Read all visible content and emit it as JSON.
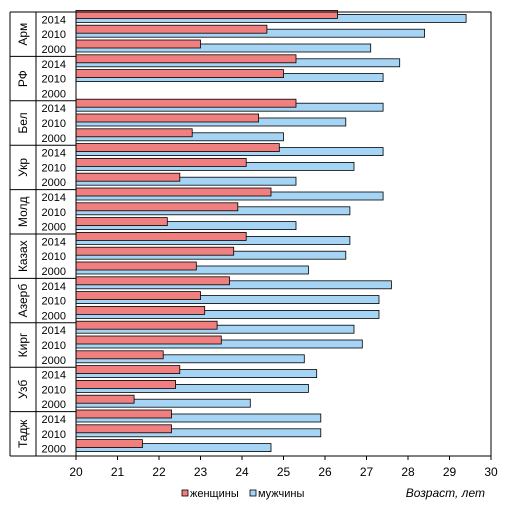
{
  "chart_data": {
    "type": "bar",
    "orientation": "horizontal",
    "xlabel": "Возраст, лет",
    "xlim": [
      20,
      30
    ],
    "xticks": [
      20,
      21,
      22,
      23,
      24,
      25,
      26,
      27,
      28,
      29,
      30
    ],
    "grid": false,
    "legend": "bottom",
    "series": [
      {
        "name": "женщины",
        "color": "#f08080"
      },
      {
        "name": "мужчины",
        "color": "#a6d4f5"
      }
    ],
    "groups": [
      {
        "country": "Арм",
        "rows": [
          {
            "year": "2014",
            "women": 26.3,
            "men": 29.4
          },
          {
            "year": "2010",
            "women": 24.6,
            "men": 28.4
          },
          {
            "year": "2000",
            "women": 23.0,
            "men": 27.1
          }
        ]
      },
      {
        "country": "РФ",
        "rows": [
          {
            "year": "2014",
            "women": 25.3,
            "men": 27.8
          },
          {
            "year": "2010",
            "women": 25.0,
            "men": 27.4
          },
          {
            "year": "2000",
            "women": null,
            "men": null
          }
        ]
      },
      {
        "country": "Бел",
        "rows": [
          {
            "year": "2014",
            "women": 25.3,
            "men": 27.4
          },
          {
            "year": "2010",
            "women": 24.4,
            "men": 26.5
          },
          {
            "year": "2000",
            "women": 22.8,
            "men": 25.0
          }
        ]
      },
      {
        "country": "Укр",
        "rows": [
          {
            "year": "2014",
            "women": 24.9,
            "men": 27.4
          },
          {
            "year": "2010",
            "women": 24.1,
            "men": 26.7
          },
          {
            "year": "2000",
            "women": 22.5,
            "men": 25.3
          }
        ]
      },
      {
        "country": "Молд",
        "rows": [
          {
            "year": "2014",
            "women": 24.7,
            "men": 27.4
          },
          {
            "year": "2010",
            "women": 23.9,
            "men": 26.6
          },
          {
            "year": "2000",
            "women": 22.2,
            "men": 25.3
          }
        ]
      },
      {
        "country": "Казах",
        "rows": [
          {
            "year": "2014",
            "women": 24.1,
            "men": 26.6
          },
          {
            "year": "2010",
            "women": 23.8,
            "men": 26.5
          },
          {
            "year": "2000",
            "women": 22.9,
            "men": 25.6
          }
        ]
      },
      {
        "country": "Азерб",
        "rows": [
          {
            "year": "2014",
            "women": 23.7,
            "men": 27.6
          },
          {
            "year": "2010",
            "women": 23.0,
            "men": 27.3
          },
          {
            "year": "2000",
            "women": 23.1,
            "men": 27.3
          }
        ]
      },
      {
        "country": "Кирг",
        "rows": [
          {
            "year": "2014",
            "women": 23.4,
            "men": 26.7
          },
          {
            "year": "2010",
            "women": 23.5,
            "men": 26.9
          },
          {
            "year": "2000",
            "women": 22.1,
            "men": 25.5
          }
        ]
      },
      {
        "country": "Узб",
        "rows": [
          {
            "year": "2014",
            "women": 22.5,
            "men": 25.8
          },
          {
            "year": "2010",
            "women": 22.4,
            "men": 25.6
          },
          {
            "year": "2000",
            "women": 21.4,
            "men": 24.2
          }
        ]
      },
      {
        "country": "Тадж",
        "rows": [
          {
            "year": "2014",
            "women": 22.3,
            "men": 25.9
          },
          {
            "year": "2010",
            "women": 22.3,
            "men": 25.9
          },
          {
            "year": "2000",
            "women": 21.6,
            "men": 24.7
          }
        ]
      }
    ]
  }
}
